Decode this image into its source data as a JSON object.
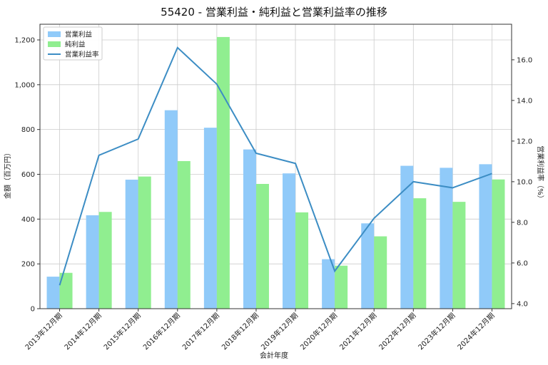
{
  "chart_data": {
    "type": "bar",
    "title": "55420 - 営業利益・純利益と営業利益率の推移",
    "xlabel": "会計年度",
    "ylabel": "金額（百万円）",
    "y2label": "営業利益率（%）",
    "categories": [
      "2013年12月期",
      "2014年12月期",
      "2015年12月期",
      "2016年12月期",
      "2017年12月期",
      "2018年12月期",
      "2019年12月期",
      "2020年12月期",
      "2021年12月期",
      "2022年12月期",
      "2023年12月期",
      "2024年12月期"
    ],
    "ylim": [
      0,
      1270
    ],
    "yticks": [
      0,
      200,
      400,
      600,
      800,
      1000,
      1200
    ],
    "ytick_labels": [
      "0",
      "200",
      "400",
      "600",
      "800",
      "1,000",
      "1,200"
    ],
    "y2lim": [
      3.75,
      17.75
    ],
    "y2ticks": [
      4.0,
      6.0,
      8.0,
      10.0,
      12.0,
      14.0,
      16.0
    ],
    "y2tick_labels": [
      "4.0",
      "6.0",
      "8.0",
      "10.0",
      "12.0",
      "14.0",
      "16.0"
    ],
    "grid": true,
    "legend_position": "top-left",
    "series": [
      {
        "name": "営業利益",
        "kind": "bar",
        "color": "#90CAF9",
        "values": [
          143,
          417,
          576,
          886,
          808,
          711,
          604,
          221,
          381,
          638,
          629,
          645
        ]
      },
      {
        "name": "純利益",
        "kind": "bar",
        "color": "#90EE90",
        "values": [
          160,
          432,
          590,
          659,
          1213,
          557,
          430,
          192,
          323,
          493,
          477,
          577
        ]
      },
      {
        "name": "営業利益率",
        "kind": "line",
        "axis": "right",
        "color": "#3C8DC4",
        "values": [
          4.9,
          11.3,
          12.1,
          16.6,
          14.8,
          11.4,
          10.9,
          5.6,
          8.2,
          10.0,
          9.7,
          10.4
        ]
      }
    ]
  }
}
